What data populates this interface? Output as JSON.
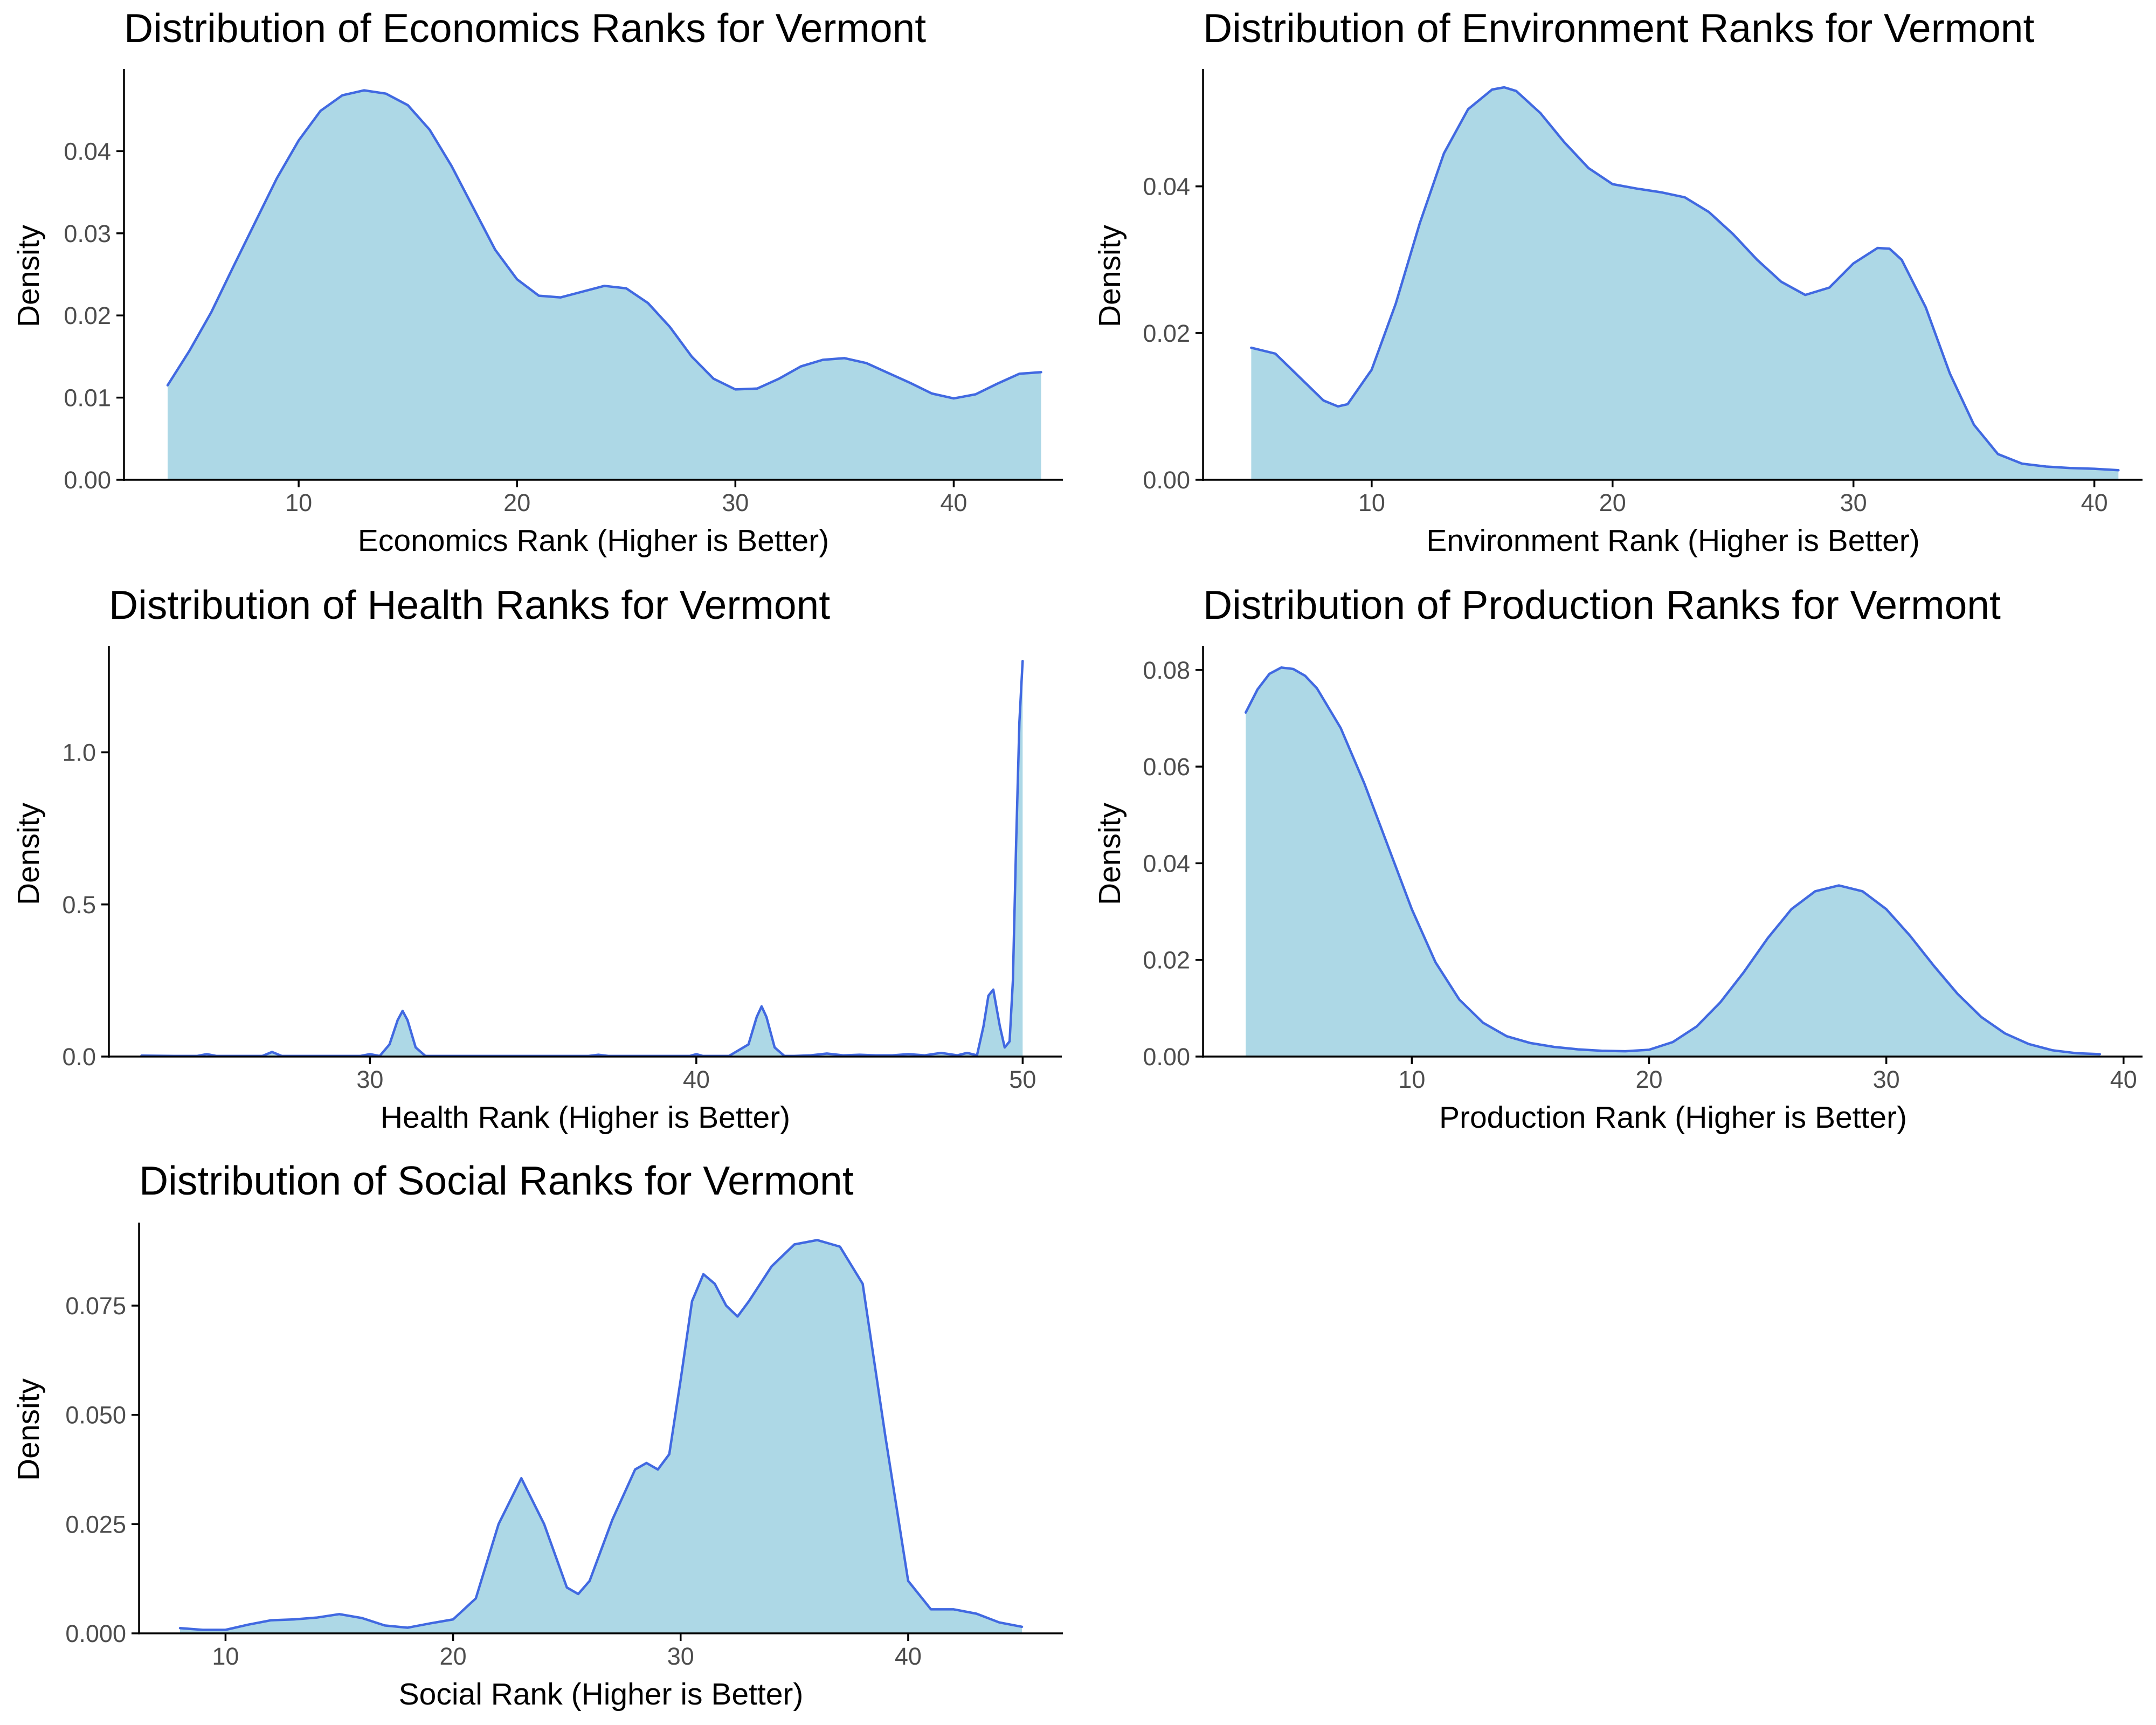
{
  "colors": {
    "fill": "#add8e6",
    "line": "#4169e1"
  },
  "chart_data": [
    {
      "type": "area",
      "title": "Distribution of Economics Ranks for Vermont",
      "xlabel": "Economics Rank (Higher is Better)",
      "ylabel": "Density",
      "xlim": [
        2,
        45
      ],
      "ylim": [
        0,
        0.05
      ],
      "xticks": [
        10,
        20,
        30,
        40
      ],
      "yticks": [
        0,
        0.01,
        0.02,
        0.03,
        0.04
      ],
      "ytick_labels": [
        "0.00",
        "0.01",
        "0.02",
        "0.03",
        "0.04"
      ],
      "grid": false,
      "x": [
        4,
        5,
        6,
        7,
        8,
        9,
        10,
        11,
        12,
        13,
        14,
        15,
        16,
        17,
        18,
        19,
        20,
        21,
        22,
        23,
        24,
        25,
        26,
        27,
        28,
        29,
        30,
        31,
        32,
        33,
        34,
        35,
        36,
        37,
        38,
        39,
        40,
        41,
        42,
        43,
        44
      ],
      "y": [
        0.0115,
        0.0157,
        0.0204,
        0.0259,
        0.0313,
        0.0367,
        0.0413,
        0.0449,
        0.0468,
        0.0474,
        0.047,
        0.0456,
        0.0426,
        0.0382,
        0.0331,
        0.028,
        0.0244,
        0.0224,
        0.0222,
        0.0229,
        0.0236,
        0.0233,
        0.0215,
        0.0186,
        0.015,
        0.0123,
        0.011,
        0.0111,
        0.0123,
        0.0138,
        0.0146,
        0.0148,
        0.0142,
        0.013,
        0.0118,
        0.0105,
        0.0099,
        0.0104,
        0.0117,
        0.0129,
        0.0131
      ]
    },
    {
      "type": "area",
      "title": "Distribution of Environment Ranks for Vermont",
      "xlabel": "Environment Rank (Higher is Better)",
      "ylabel": "Density",
      "xlim": [
        3,
        42
      ],
      "ylim": [
        0,
        0.056
      ],
      "xticks": [
        10,
        20,
        30,
        40
      ],
      "yticks": [
        0,
        0.02,
        0.04
      ],
      "ytick_labels": [
        "0.00",
        "0.02",
        "0.04"
      ],
      "grid": false,
      "x": [
        5,
        6,
        7,
        8,
        8.6,
        9,
        10,
        11,
        12,
        13,
        14,
        15,
        15.5,
        16,
        17,
        18,
        19,
        20,
        21,
        22,
        23,
        24,
        25,
        26,
        27,
        28,
        29,
        30,
        31,
        31.5,
        32,
        33,
        34,
        35,
        36,
        37,
        38,
        39,
        40,
        41
      ],
      "y": [
        0.018,
        0.0172,
        0.014,
        0.0108,
        0.01,
        0.0103,
        0.015,
        0.024,
        0.035,
        0.0445,
        0.0505,
        0.0532,
        0.0535,
        0.053,
        0.05,
        0.046,
        0.0425,
        0.0403,
        0.0397,
        0.0392,
        0.0385,
        0.0365,
        0.0335,
        0.03,
        0.027,
        0.0252,
        0.0262,
        0.0295,
        0.0316,
        0.0315,
        0.03,
        0.0235,
        0.0145,
        0.0075,
        0.0035,
        0.0022,
        0.0018,
        0.0016,
        0.0015,
        0.0013
      ]
    },
    {
      "type": "area",
      "title": "Distribution of Health Ranks for Vermont",
      "xlabel": "Health Rank (Higher is Better)",
      "ylabel": "Density",
      "xlim": [
        22,
        51.2
      ],
      "ylim": [
        0,
        1.35
      ],
      "xticks": [
        30,
        40,
        50
      ],
      "yticks": [
        0,
        0.5,
        1.0
      ],
      "ytick_labels": [
        "0.0",
        "0.5",
        "1.0"
      ],
      "grid": false,
      "x": [
        23,
        24,
        24.7,
        25,
        25.3,
        26,
        26.7,
        27,
        27.3,
        28,
        29,
        29.7,
        30,
        30.3,
        30.6,
        30.85,
        31,
        31.15,
        31.4,
        31.7,
        32,
        33,
        34,
        35,
        36,
        36.7,
        37,
        37.3,
        38,
        39,
        39.8,
        40,
        40.2,
        41,
        41.6,
        41.85,
        42,
        42.15,
        42.4,
        42.7,
        43,
        43.5,
        44,
        44.5,
        45,
        45.5,
        46,
        46.5,
        47,
        47.5,
        48,
        48.3,
        48.6,
        48.8,
        48.95,
        49.1,
        49.3,
        49.45,
        49.6,
        49.7,
        49.8,
        49.9,
        50
      ],
      "y": [
        0.003,
        0.002,
        0.002,
        0.008,
        0.002,
        0.002,
        0.002,
        0.015,
        0.002,
        0.002,
        0.002,
        0.002,
        0.008,
        0.002,
        0.04,
        0.12,
        0.15,
        0.12,
        0.03,
        0.002,
        0.002,
        0.002,
        0.002,
        0.002,
        0.002,
        0.002,
        0.006,
        0.002,
        0.002,
        0.002,
        0.002,
        0.008,
        0.002,
        0.002,
        0.04,
        0.13,
        0.165,
        0.13,
        0.03,
        0.002,
        0.002,
        0.004,
        0.01,
        0.004,
        0.006,
        0.004,
        0.004,
        0.008,
        0.004,
        0.012,
        0.004,
        0.012,
        0.004,
        0.1,
        0.2,
        0.22,
        0.1,
        0.03,
        0.05,
        0.25,
        0.7,
        1.1,
        1.3
      ]
    },
    {
      "type": "area",
      "title": "Distribution of Production Ranks for Vermont",
      "xlabel": "Production Rank (Higher is Better)",
      "ylabel": "Density",
      "xlim": [
        1.2,
        40.8
      ],
      "ylim": [
        0,
        0.085
      ],
      "xticks": [
        10,
        20,
        30,
        40
      ],
      "yticks": [
        0,
        0.02,
        0.04,
        0.06,
        0.08
      ],
      "ytick_labels": [
        "0.00",
        "0.02",
        "0.04",
        "0.06",
        "0.08"
      ],
      "grid": false,
      "x": [
        3,
        3.5,
        4,
        4.5,
        5,
        5.5,
        6,
        7,
        8,
        9,
        10,
        11,
        12,
        13,
        14,
        15,
        16,
        17,
        18,
        19,
        20,
        21,
        22,
        23,
        24,
        25,
        26,
        27,
        28,
        29,
        30,
        31,
        32,
        33,
        34,
        35,
        36,
        37,
        38,
        39
      ],
      "y": [
        0.0712,
        0.076,
        0.0792,
        0.0805,
        0.0802,
        0.0788,
        0.0762,
        0.068,
        0.0565,
        0.0435,
        0.0305,
        0.0195,
        0.0118,
        0.007,
        0.0042,
        0.0028,
        0.002,
        0.0015,
        0.0012,
        0.0011,
        0.0014,
        0.003,
        0.0062,
        0.0112,
        0.0175,
        0.0245,
        0.0305,
        0.0342,
        0.0354,
        0.0342,
        0.0305,
        0.025,
        0.0188,
        0.013,
        0.0082,
        0.0048,
        0.0026,
        0.0013,
        0.0007,
        0.0005
      ]
    },
    {
      "type": "area",
      "title": "Distribution of Social Ranks for Vermont",
      "xlabel": "Social Rank (Higher is Better)",
      "ylabel": "Density",
      "xlim": [
        6.2,
        46.8
      ],
      "ylim": [
        0,
        0.094
      ],
      "xticks": [
        10,
        20,
        30,
        40
      ],
      "yticks": [
        0,
        0.025,
        0.05,
        0.075
      ],
      "ytick_labels": [
        "0.000",
        "0.025",
        "0.050",
        "0.075"
      ],
      "grid": false,
      "x": [
        8,
        9,
        10,
        11,
        12,
        13,
        14,
        15,
        16,
        17,
        18,
        19,
        20,
        21,
        22,
        23,
        24,
        25,
        25.5,
        26,
        27,
        28,
        28.5,
        29,
        29.5,
        30,
        30.5,
        31,
        31.5,
        32,
        32.5,
        33,
        34,
        35,
        36,
        37,
        38,
        39,
        40,
        41,
        42,
        43,
        44,
        45
      ],
      "y": [
        0.0012,
        0.0008,
        0.0008,
        0.002,
        0.003,
        0.0032,
        0.0036,
        0.0044,
        0.0035,
        0.0018,
        0.0013,
        0.0023,
        0.0032,
        0.008,
        0.025,
        0.0355,
        0.025,
        0.0105,
        0.009,
        0.012,
        0.026,
        0.0375,
        0.039,
        0.0375,
        0.041,
        0.058,
        0.076,
        0.0822,
        0.08,
        0.075,
        0.0725,
        0.076,
        0.084,
        0.089,
        0.09,
        0.0885,
        0.08,
        0.045,
        0.012,
        0.0055,
        0.0055,
        0.0045,
        0.0025,
        0.0015
      ]
    }
  ]
}
